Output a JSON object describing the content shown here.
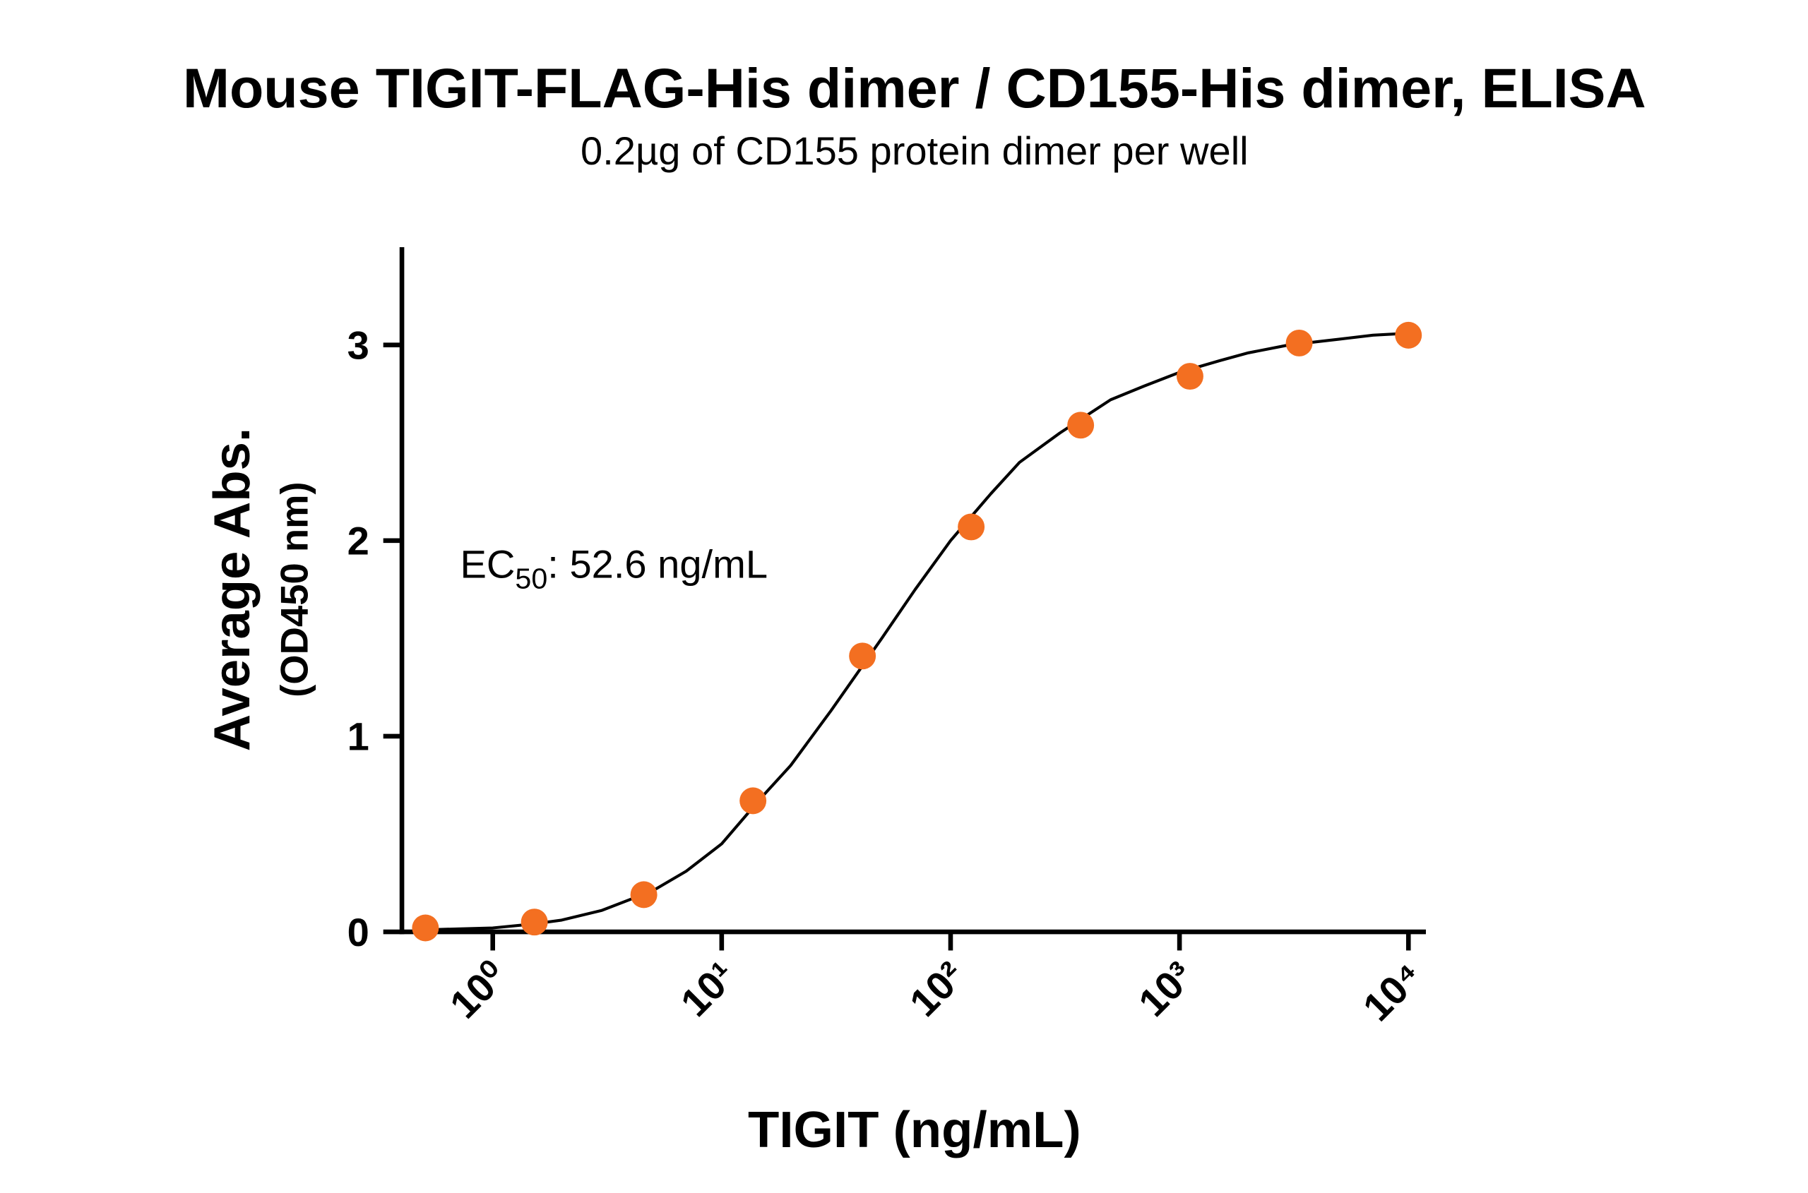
{
  "chart_data": {
    "type": "scatter",
    "title": "Mouse TIGIT-FLAG-His dimer / CD155-His dimer, ELISA",
    "subtitle": "0.2µg of CD155 protein dimer per well",
    "x_label": "TIGIT (ng/mL)",
    "y_label": [
      "Average Abs.",
      "(OD450 nm)"
    ],
    "annotation": {
      "text": "EC",
      "sub": "50",
      "rest": ": 52.6 ng/mL"
    },
    "x_scale": "log",
    "xlim": [
      0.401,
      11920
    ],
    "ylim": [
      0,
      3.5
    ],
    "xticks": [
      {
        "value": 1,
        "label": "10⁰"
      },
      {
        "value": 10,
        "label": "10¹"
      },
      {
        "value": 100,
        "label": "10²"
      },
      {
        "value": 1000,
        "label": "10³"
      },
      {
        "value": 10000,
        "label": "10⁴"
      }
    ],
    "yticks": [
      0,
      1,
      2,
      3
    ],
    "points": {
      "color": "#f36f21",
      "x": [
        0.508,
        1.52,
        4.57,
        13.7,
        41.2,
        123,
        370,
        1111,
        3333,
        10000
      ],
      "values": [
        0.02,
        0.05,
        0.19,
        0.67,
        1.41,
        2.07,
        2.59,
        2.84,
        3.01,
        3.05
      ]
    },
    "fit": {
      "color": "#000000",
      "x": [
        0.5,
        0.7,
        1,
        1.5,
        2,
        3,
        5,
        7,
        10,
        15,
        20,
        30,
        50,
        70,
        100,
        150,
        200,
        300,
        500,
        700,
        1000,
        1500,
        2000,
        3000,
        5000,
        7000,
        10000
      ],
      "values": [
        0.01,
        0.015,
        0.02,
        0.04,
        0.06,
        0.11,
        0.21,
        0.31,
        0.45,
        0.69,
        0.85,
        1.13,
        1.5,
        1.75,
        2.0,
        2.24,
        2.4,
        2.55,
        2.72,
        2.79,
        2.86,
        2.92,
        2.96,
        3.0,
        3.03,
        3.05,
        3.06
      ]
    }
  }
}
